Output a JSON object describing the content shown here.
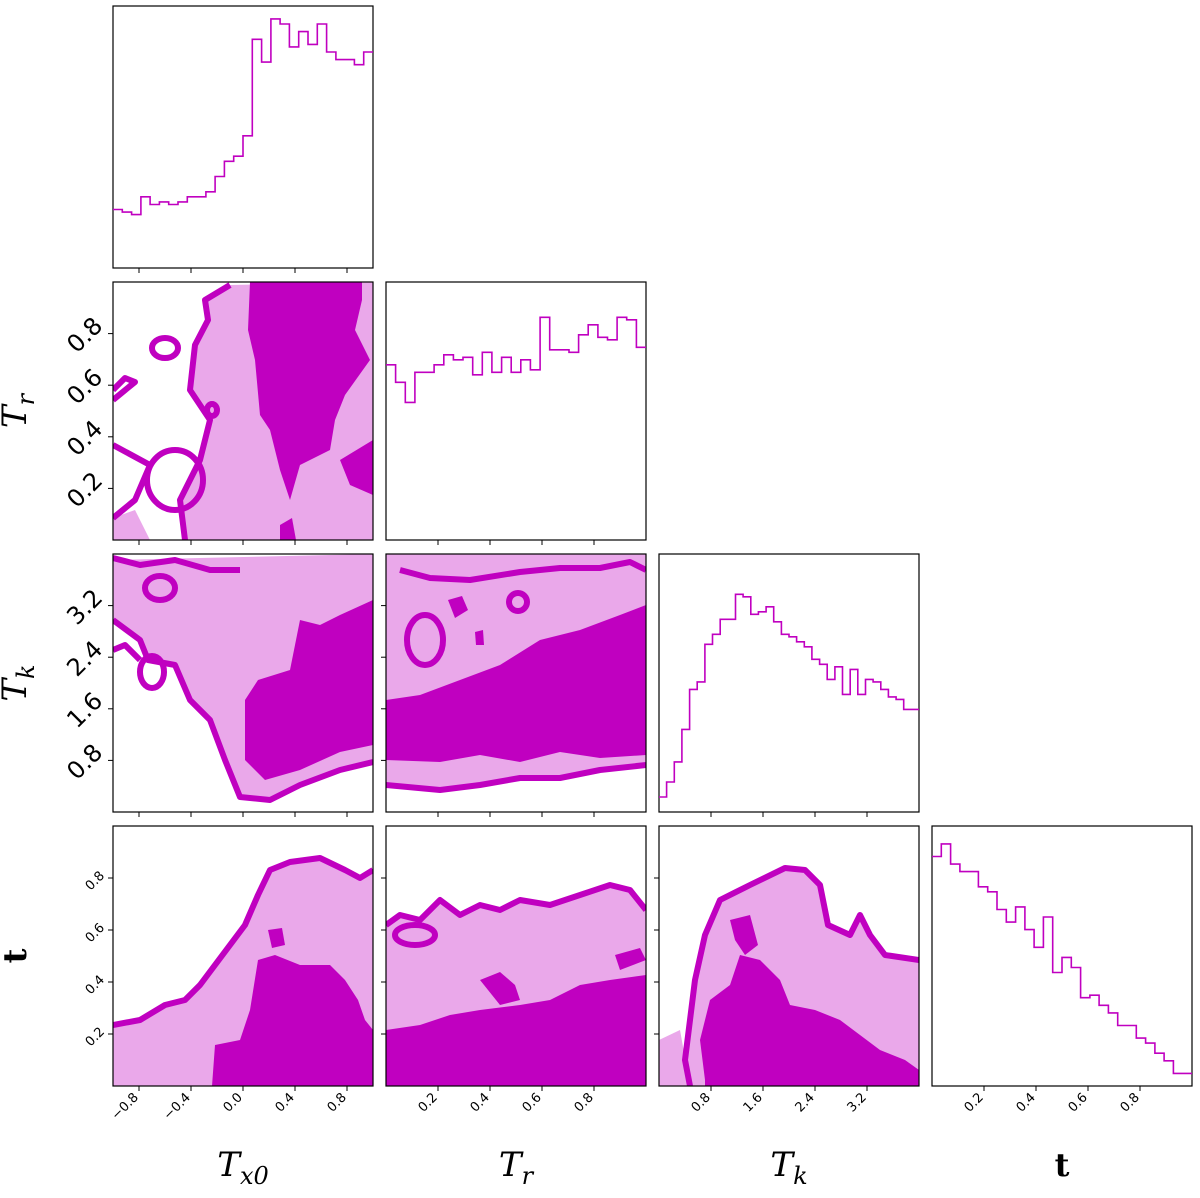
{
  "chart_data": {
    "type": "corner",
    "colors": {
      "line": "#c000c0",
      "fill_dark": "#c000c0",
      "fill_light": "#eaa8ea"
    },
    "parameters": [
      {
        "key": "Tx0",
        "label_main": "T",
        "label_sub": "x0",
        "range": [
          -1.0,
          1.0
        ],
        "ticks": [
          -0.8,
          -0.4,
          0.0,
          0.4,
          0.8
        ],
        "tick_labels": [
          "−0.8",
          "−0.4",
          "0.0",
          "0.4",
          "0.8"
        ]
      },
      {
        "key": "Tr",
        "label_main": "T",
        "label_sub": "r",
        "range": [
          0.0,
          1.0
        ],
        "ticks": [
          0.2,
          0.4,
          0.6,
          0.8
        ],
        "tick_labels": [
          "0.2",
          "0.4",
          "0.6",
          "0.8"
        ]
      },
      {
        "key": "Tk",
        "label_main": "T",
        "label_sub": "k",
        "range": [
          0.0,
          4.0
        ],
        "ticks": [
          0.8,
          1.6,
          2.4,
          3.2
        ],
        "tick_labels": [
          "0.8",
          "1.6",
          "2.4",
          "3.2"
        ]
      },
      {
        "key": "t",
        "label_main": "t",
        "label_sub": "",
        "range": [
          0.0,
          1.0
        ],
        "ticks": [
          0.2,
          0.4,
          0.6,
          0.8
        ],
        "tick_labels": [
          "0.2",
          "0.4",
          "0.6",
          "0.8"
        ]
      }
    ],
    "histograms": [
      {
        "param": "Tx0",
        "ylim": [
          0,
          1
        ],
        "values": [
          0.23,
          0.22,
          0.21,
          0.28,
          0.25,
          0.26,
          0.25,
          0.26,
          0.28,
          0.28,
          0.3,
          0.36,
          0.42,
          0.44,
          0.52,
          0.9,
          0.81,
          0.98,
          0.96,
          0.87,
          0.93,
          0.88,
          0.96,
          0.85,
          0.82,
          0.82,
          0.8,
          0.85
        ]
      },
      {
        "param": "Tr",
        "ylim": [
          0,
          1
        ],
        "values": [
          0.7,
          0.63,
          0.55,
          0.67,
          0.67,
          0.7,
          0.74,
          0.72,
          0.73,
          0.66,
          0.75,
          0.67,
          0.73,
          0.67,
          0.72,
          0.68,
          0.89,
          0.76,
          0.76,
          0.75,
          0.82,
          0.86,
          0.81,
          0.8,
          0.89,
          0.88,
          0.77
        ]
      },
      {
        "param": "Tk",
        "ylim": [
          0,
          1
        ],
        "values": [
          0.06,
          0.12,
          0.2,
          0.33,
          0.49,
          0.52,
          0.67,
          0.71,
          0.77,
          0.77,
          0.87,
          0.86,
          0.79,
          0.8,
          0.82,
          0.76,
          0.71,
          0.7,
          0.68,
          0.66,
          0.61,
          0.59,
          0.53,
          0.58,
          0.47,
          0.57,
          0.47,
          0.53,
          0.52,
          0.49,
          0.46,
          0.45,
          0.41,
          0.41
        ]
      },
      {
        "param": "t",
        "ylim": [
          0,
          1
        ],
        "values": [
          0.91,
          0.96,
          0.88,
          0.85,
          0.85,
          0.79,
          0.77,
          0.7,
          0.65,
          0.71,
          0.62,
          0.55,
          0.67,
          0.45,
          0.51,
          0.47,
          0.35,
          0.36,
          0.32,
          0.29,
          0.24,
          0.24,
          0.19,
          0.17,
          0.13,
          0.1,
          0.05,
          0.05
        ]
      }
    ]
  }
}
